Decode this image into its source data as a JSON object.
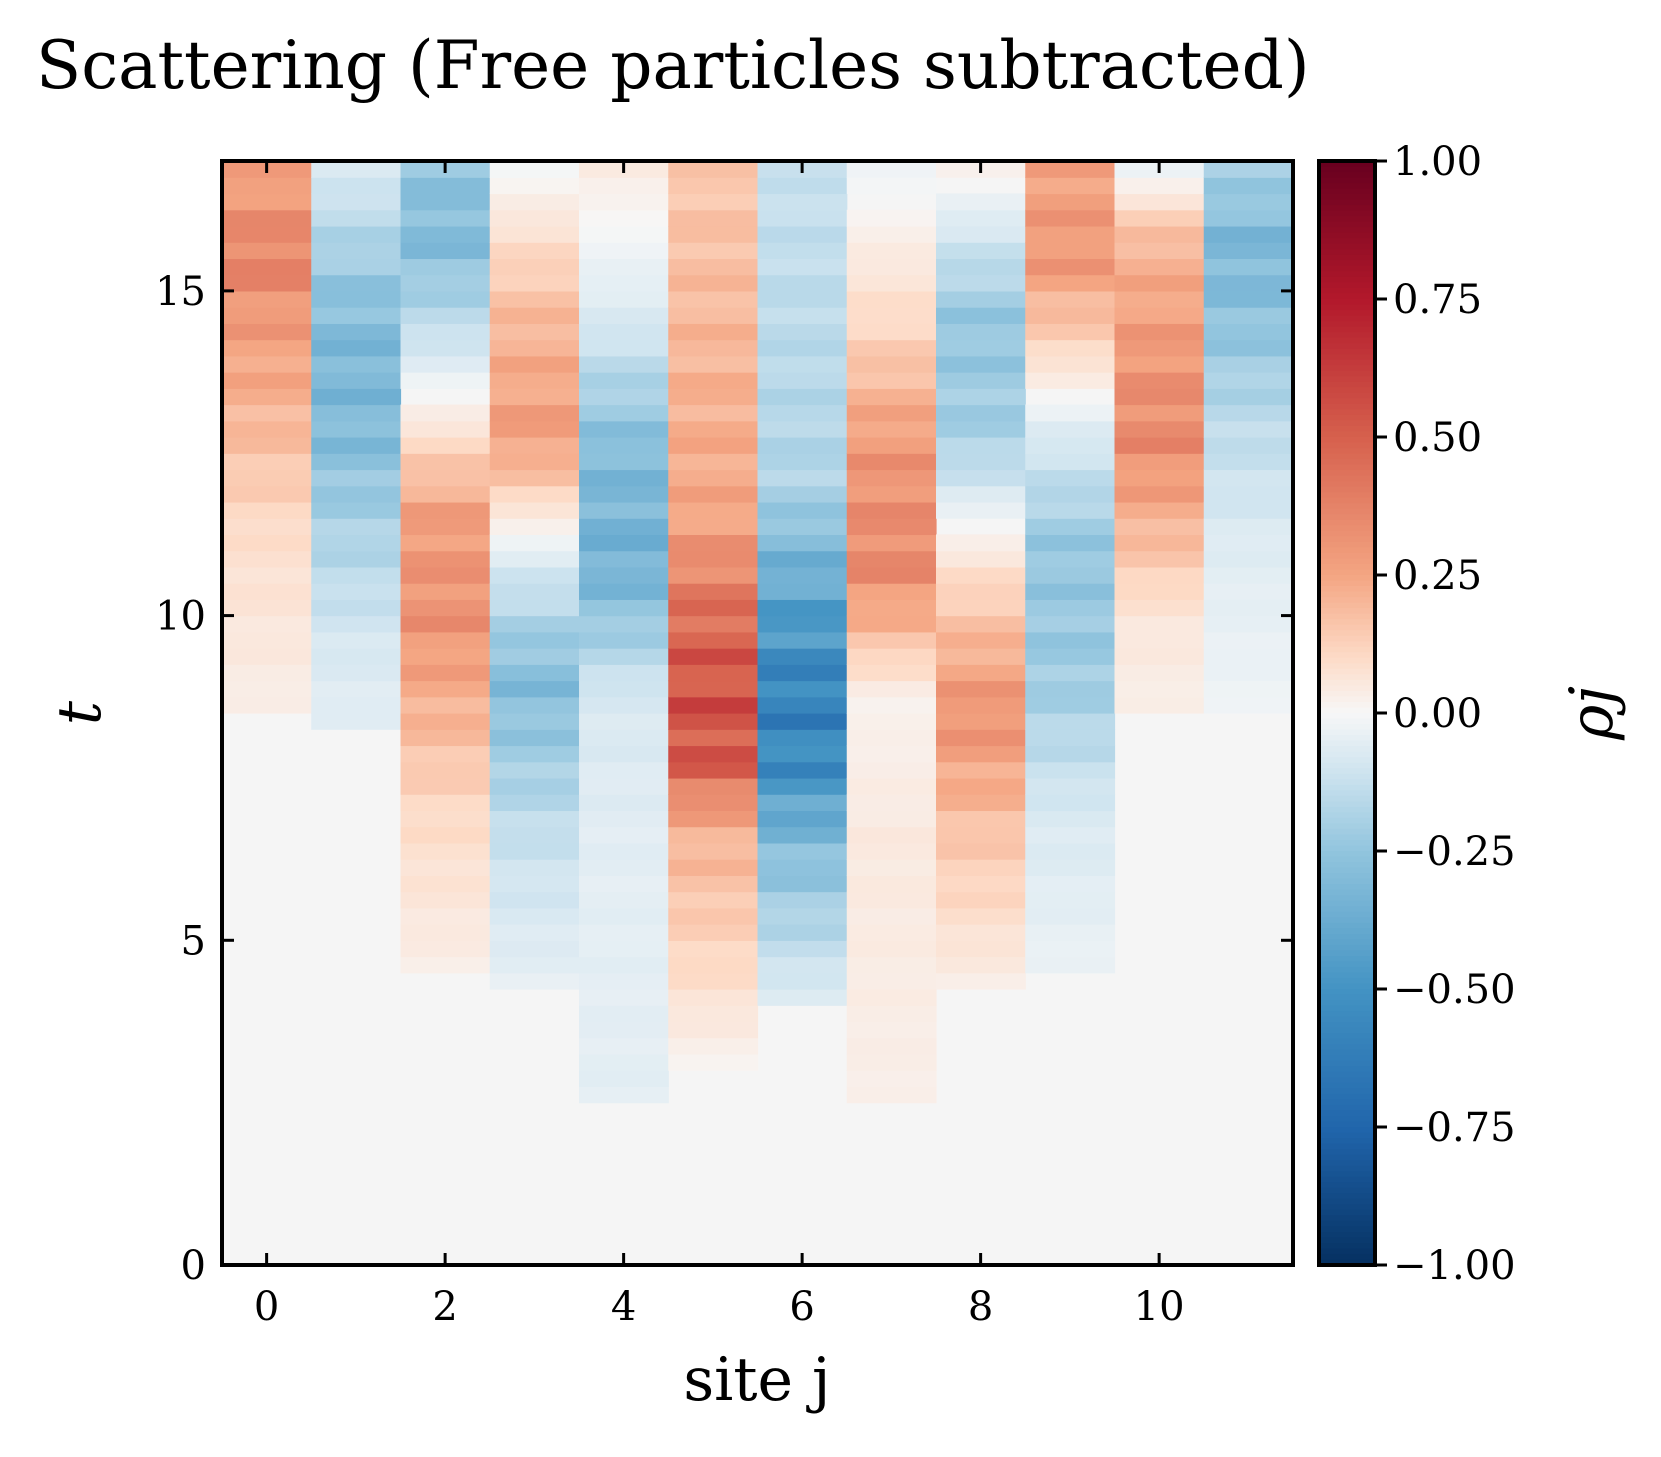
{
  "chart_data": {
    "type": "heatmap",
    "title": "Scattering (Free particles subtracted)",
    "xlabel": "site j",
    "ylabel": "t",
    "colorbar_label": "ρj",
    "colormap": "RdBu_r",
    "x_ticks": [
      0,
      2,
      4,
      6,
      8,
      10
    ],
    "y_ticks": [
      0,
      5,
      10,
      15
    ],
    "colorbar_ticks": [
      1.0,
      0.75,
      0.5,
      0.25,
      0.0,
      -0.25,
      -0.5,
      -0.75,
      -1.0
    ],
    "colorbar_tick_labels": [
      "1.00",
      "0.75",
      "0.50",
      "0.25",
      "0.00",
      "−0.25",
      "−0.50",
      "−0.75",
      "−1.00"
    ],
    "xlim": [
      -0.5,
      11.5
    ],
    "ylim": [
      0,
      17
    ],
    "vmin": -1.0,
    "vmax": 1.0,
    "sites": [
      0,
      1,
      2,
      3,
      4,
      5,
      6,
      7,
      8,
      9,
      10,
      11
    ],
    "dt": 0.25,
    "time_rows": 68,
    "series": [
      {
        "name": "site 0",
        "values": [
          [
            8.5,
            0.03
          ],
          [
            11.25,
            0.09
          ],
          [
            13.0,
            0.2
          ],
          [
            14.75,
            0.3
          ],
          [
            15.5,
            0.38
          ],
          [
            17.0,
            0.24
          ]
        ]
      },
      {
        "name": "site 1",
        "values": [
          [
            8.25,
            -0.05
          ],
          [
            9.5,
            -0.08
          ],
          [
            11.5,
            -0.2
          ],
          [
            12.75,
            -0.3
          ],
          [
            14.0,
            -0.32
          ],
          [
            15.0,
            -0.26
          ],
          [
            17.0,
            -0.06
          ]
        ]
      },
      {
        "name": "site 2",
        "values": [
          [
            4.5,
            0.03
          ],
          [
            7.0,
            0.1
          ],
          [
            10.0,
            0.32
          ],
          [
            11.5,
            0.28
          ],
          [
            13.0,
            0.05
          ],
          [
            15.75,
            -0.3
          ],
          [
            17.0,
            -0.25
          ]
        ]
      },
      {
        "name": "site 3",
        "values": [
          [
            4.25,
            -0.04
          ],
          [
            6.5,
            -0.12
          ],
          [
            9.0,
            -0.3
          ],
          [
            11.0,
            -0.05
          ],
          [
            12.75,
            0.28
          ],
          [
            14.5,
            0.2
          ],
          [
            17.0,
            -0.02
          ]
        ]
      },
      {
        "name": "site 4",
        "values": [
          [
            2.5,
            -0.05
          ],
          [
            6.0,
            -0.05
          ],
          [
            8.75,
            -0.08
          ],
          [
            10.75,
            -0.35
          ],
          [
            12.5,
            -0.3
          ],
          [
            14.5,
            -0.08
          ],
          [
            17.0,
            0.05
          ]
        ]
      },
      {
        "name": "site 5",
        "values": [
          [
            3.0,
            0.01
          ],
          [
            6.75,
            0.22
          ],
          [
            7.75,
            0.52
          ],
          [
            8.75,
            0.55
          ],
          [
            9.75,
            0.48
          ],
          [
            11.5,
            0.25
          ],
          [
            17.0,
            0.15
          ]
        ]
      },
      {
        "name": "site 6",
        "values": [
          [
            4.0,
            -0.05
          ],
          [
            6.5,
            -0.3
          ],
          [
            7.75,
            -0.55
          ],
          [
            8.75,
            -0.6
          ],
          [
            10.0,
            -0.45
          ],
          [
            12.0,
            -0.18
          ],
          [
            17.0,
            -0.12
          ]
        ]
      },
      {
        "name": "site 7",
        "values": [
          [
            2.5,
            0.03
          ],
          [
            6.5,
            0.05
          ],
          [
            8.75,
            0.02
          ],
          [
            10.75,
            0.35
          ],
          [
            12.5,
            0.3
          ],
          [
            14.5,
            0.1
          ],
          [
            17.0,
            -0.03
          ]
        ]
      },
      {
        "name": "site 8",
        "values": [
          [
            4.25,
            0.03
          ],
          [
            6.5,
            0.15
          ],
          [
            8.5,
            0.32
          ],
          [
            11.0,
            0.05
          ],
          [
            12.75,
            -0.2
          ],
          [
            14.5,
            -0.25
          ],
          [
            17.0,
            0.04
          ]
        ]
      },
      {
        "name": "site 9",
        "values": [
          [
            4.5,
            -0.03
          ],
          [
            7.0,
            -0.08
          ],
          [
            9.0,
            -0.22
          ],
          [
            11.0,
            -0.25
          ],
          [
            13.0,
            -0.05
          ],
          [
            15.5,
            0.3
          ],
          [
            17.0,
            0.26
          ]
        ]
      },
      {
        "name": "site 10",
        "values": [
          [
            8.5,
            0.03
          ],
          [
            10.0,
            0.06
          ],
          [
            11.5,
            0.22
          ],
          [
            12.75,
            0.35
          ],
          [
            14.0,
            0.3
          ],
          [
            15.75,
            0.2
          ],
          [
            17.0,
            -0.05
          ]
        ]
      },
      {
        "name": "site 11",
        "values": [
          [
            8.5,
            -0.02
          ],
          [
            11.0,
            -0.06
          ],
          [
            13.0,
            -0.15
          ],
          [
            14.75,
            -0.28
          ],
          [
            15.75,
            -0.32
          ],
          [
            17.0,
            -0.18
          ]
        ]
      }
    ]
  }
}
